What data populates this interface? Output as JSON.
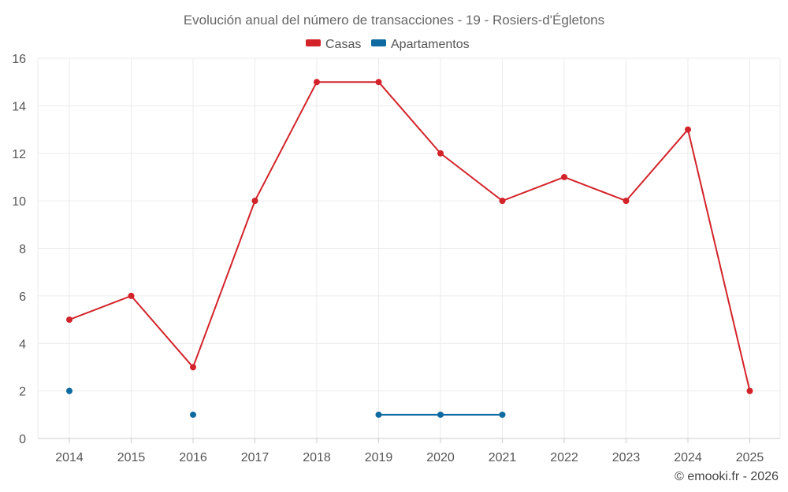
{
  "chart_data": {
    "type": "line",
    "title": "Evolución anual del número de transacciones - 19 - Rosiers-d'Égletons",
    "xlabel": "",
    "ylabel": "",
    "categories": [
      "2014",
      "2015",
      "2016",
      "2017",
      "2018",
      "2019",
      "2020",
      "2021",
      "2022",
      "2023",
      "2024",
      "2025"
    ],
    "ylim": [
      0,
      16
    ],
    "yticks": [
      0,
      2,
      4,
      6,
      8,
      10,
      12,
      14,
      16
    ],
    "grid": true,
    "legend_position": "top-center",
    "series": [
      {
        "name": "Casas",
        "color": "#d3232a",
        "values": [
          5,
          6,
          3,
          10,
          15,
          15,
          12,
          10,
          11,
          10,
          13,
          2
        ]
      },
      {
        "name": "Apartamentos",
        "color": "#0e6aa0",
        "values": [
          2,
          null,
          1,
          null,
          null,
          1,
          1,
          1,
          null,
          null,
          null,
          null
        ]
      }
    ]
  },
  "credit": "© emooki.fr - 2026"
}
